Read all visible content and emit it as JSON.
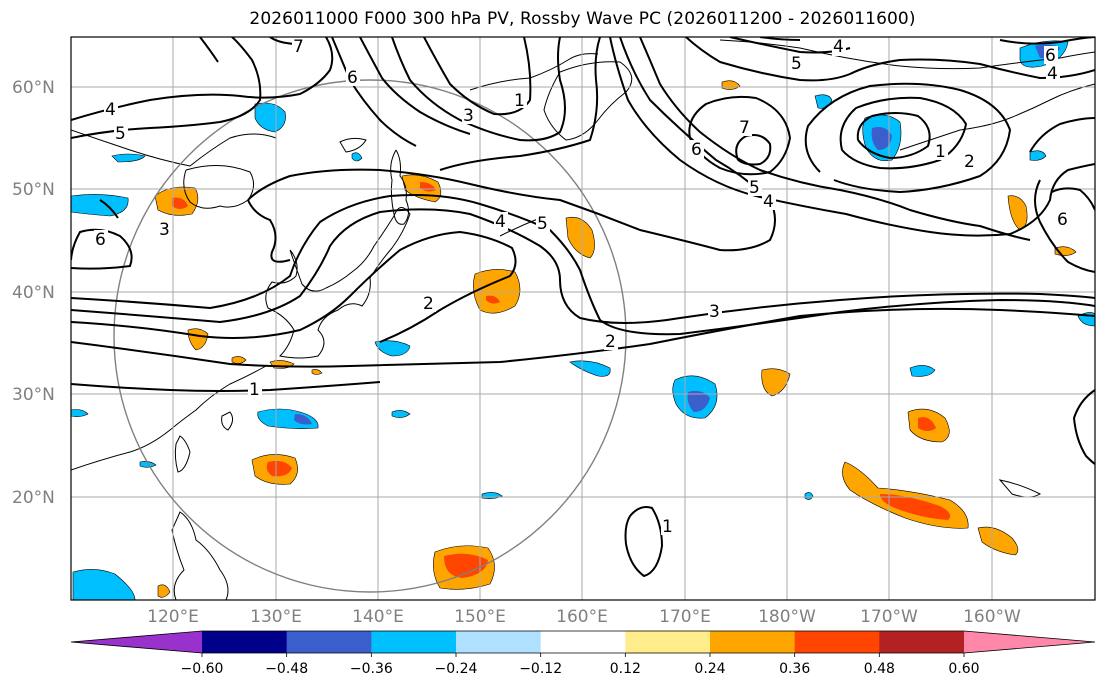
{
  "title": "2026011000 F000 300 hPa PV, Rossby Wave PC (2026011200 - 2026011600)",
  "axes": {
    "lat_labels": [
      "60°N",
      "50°N",
      "40°N",
      "30°N",
      "20°N"
    ],
    "lon_labels": [
      "120°E",
      "130°E",
      "140°E",
      "150°E",
      "160°E",
      "170°E",
      "180°W",
      "170°W",
      "160°W"
    ]
  },
  "contour_labels": [
    "1",
    "2",
    "3",
    "4",
    "5",
    "6",
    "7"
  ],
  "colorbar": {
    "ticks": [
      "−0.60",
      "−0.48",
      "−0.36",
      "−0.24",
      "−0.12",
      "0.12",
      "0.24",
      "0.36",
      "0.48",
      "0.60"
    ],
    "colors": [
      "#9932cc",
      "#00008b",
      "#3a5fcd",
      "#00bfff",
      "#b0e0ff",
      "#ffffff",
      "#ffec8b",
      "#ffa500",
      "#ff4500",
      "#b22222",
      "#ff88aa"
    ]
  }
}
